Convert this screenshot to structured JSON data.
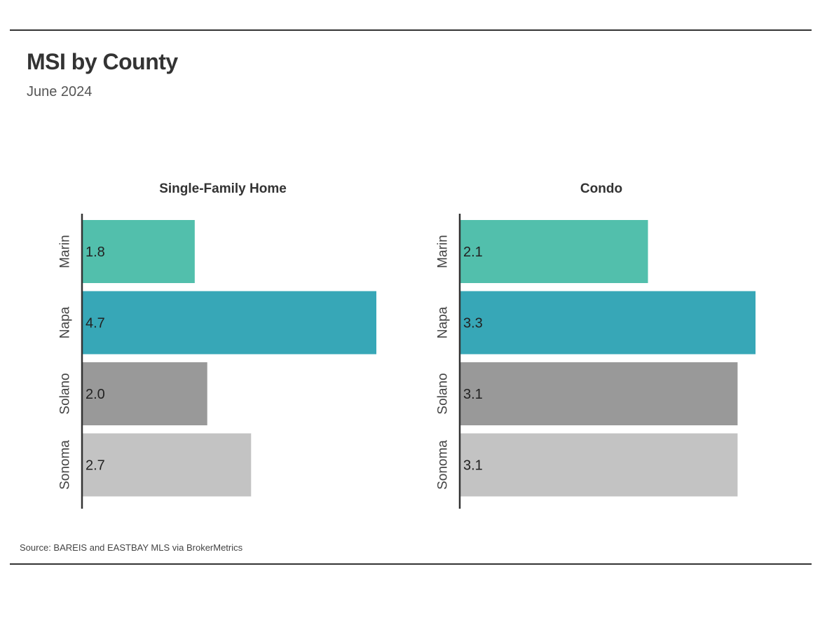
{
  "title": "MSI by County",
  "subtitle": "June 2024",
  "source": "Source:  BAREIS and EASTBAY MLS via BrokerMetrics",
  "colors": {
    "Marin": "#52bfac",
    "Napa": "#37a7b7",
    "Solano": "#999999",
    "Sonoma": "#c3c3c3",
    "axis": "#333333"
  },
  "chart_data": [
    {
      "type": "bar",
      "orientation": "horizontal",
      "title": "Single-Family Home",
      "categories": [
        "Marin",
        "Napa",
        "Solano",
        "Sonoma"
      ],
      "values": [
        1.8,
        4.7,
        2.0,
        2.7
      ],
      "value_labels": [
        "1.8",
        "4.7",
        "2.0",
        "2.7"
      ],
      "xlim": [
        0,
        4.7
      ],
      "grid": false
    },
    {
      "type": "bar",
      "orientation": "horizontal",
      "title": "Condo",
      "categories": [
        "Marin",
        "Napa",
        "Solano",
        "Sonoma"
      ],
      "values": [
        2.1,
        3.3,
        3.1,
        3.1
      ],
      "value_labels": [
        "2.1",
        "3.3",
        "3.1",
        "3.1"
      ],
      "xlim": [
        0,
        3.3
      ],
      "grid": false
    }
  ]
}
